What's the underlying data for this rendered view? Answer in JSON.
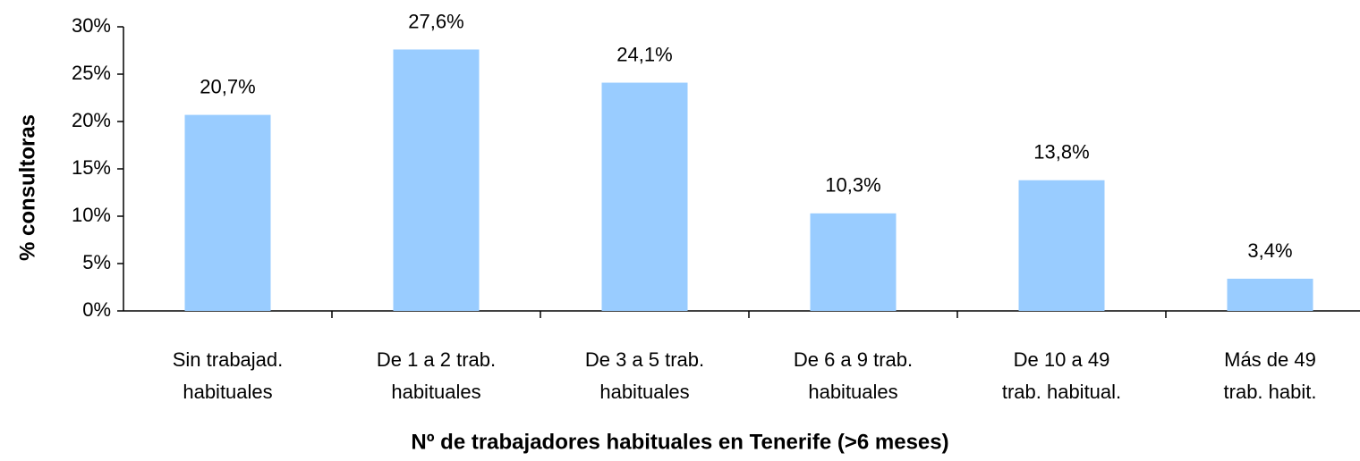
{
  "chart_data": {
    "type": "bar",
    "x_label": "Nº de trabajadores habituales en Tenerife (>6 meses)",
    "y_label": "% consultoras",
    "categories": [
      [
        "Sin trabajad.",
        "habituales"
      ],
      [
        "De 1 a 2 trab.",
        "habituales"
      ],
      [
        "De 3 a 5 trab.",
        "habituales"
      ],
      [
        "De 6 a 9 trab.",
        "habituales"
      ],
      [
        "De 10 a 49",
        "trab. habitual."
      ],
      [
        "Más de 49",
        "trab. habit."
      ]
    ],
    "values": [
      20.7,
      27.6,
      24.1,
      10.3,
      13.8,
      3.4
    ],
    "value_labels": [
      "20,7%",
      "27,6%",
      "24,1%",
      "10,3%",
      "13,8%",
      "3,4%"
    ],
    "color": "#99ccff",
    "ylim": [
      0,
      30
    ],
    "yticks": [
      {
        "value": 0,
        "label": "0%"
      },
      {
        "value": 5,
        "label": "5%"
      },
      {
        "value": 10,
        "label": "10%"
      },
      {
        "value": 15,
        "label": "15%"
      },
      {
        "value": 20,
        "label": "20%"
      },
      {
        "value": 25,
        "label": "25%"
      },
      {
        "value": 30,
        "label": "30%"
      }
    ],
    "grid": false
  }
}
